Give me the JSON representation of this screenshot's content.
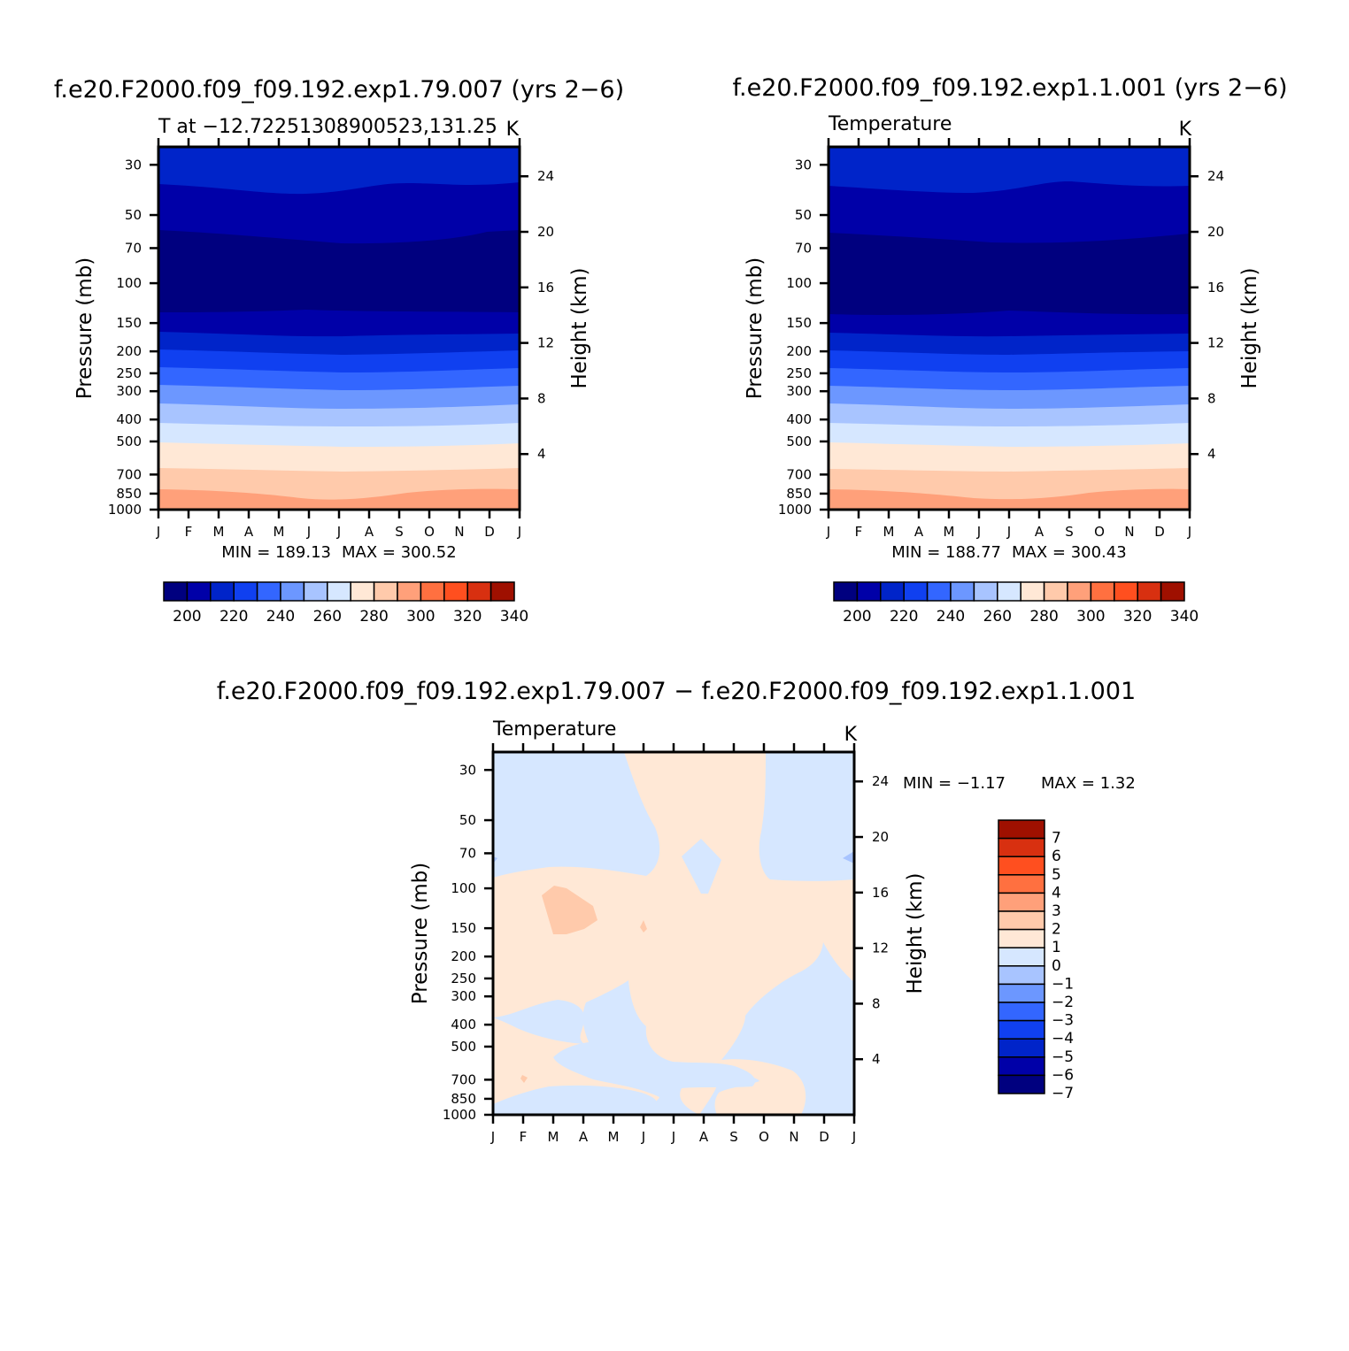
{
  "colors": {
    "scale": [
      "#00007f",
      "#0000a8",
      "#0024c9",
      "#1040f0",
      "#3366ff",
      "#6c97ff",
      "#a8c4ff",
      "#d6e7ff",
      "#ffe8d6",
      "#ffcaab",
      "#ffa07a",
      "#ff7040",
      "#ff4f1f",
      "#d83010",
      "#9f1000"
    ]
  },
  "chart_data": [
    {
      "type": "contour",
      "title": "f.e20.F2000.f09_f09.192.exp1.79.007 (yrs 2−6)",
      "subtitle_left": "T at −12.72251308900523,131.25",
      "subtitle_right": "K",
      "xlabel": "",
      "ylabel": "Pressure (mb)",
      "ylabel_right": "Height (km)",
      "x_ticks": [
        "J",
        "F",
        "M",
        "A",
        "M",
        "J",
        "J",
        "A",
        "S",
        "O",
        "N",
        "D",
        "J"
      ],
      "y_ticks": [
        "30",
        "50",
        "70",
        "100",
        "150",
        "200",
        "250",
        "300",
        "400",
        "500",
        "700",
        "850",
        "1000"
      ],
      "y_ticks_right": [
        "24",
        "20",
        "16",
        "12",
        "8",
        "4"
      ],
      "ylim": [
        1000,
        25
      ],
      "min_label": "MIN = 189.13",
      "max_label": "MAX = 300.52",
      "min": 189.13,
      "max": 300.52,
      "colorbar_labels": [
        "200",
        "220",
        "240",
        "260",
        "280",
        "300",
        "320",
        "340"
      ]
    },
    {
      "type": "contour",
      "title": "f.e20.F2000.f09_f09.192.exp1.1.001 (yrs 2−6)",
      "subtitle_left": "Temperature",
      "subtitle_right": "K",
      "xlabel": "",
      "ylabel": "Pressure (mb)",
      "ylabel_right": "Height (km)",
      "x_ticks": [
        "J",
        "F",
        "M",
        "A",
        "M",
        "J",
        "J",
        "A",
        "S",
        "O",
        "N",
        "D",
        "J"
      ],
      "y_ticks": [
        "30",
        "50",
        "70",
        "100",
        "150",
        "200",
        "250",
        "300",
        "400",
        "500",
        "700",
        "850",
        "1000"
      ],
      "y_ticks_right": [
        "24",
        "20",
        "16",
        "12",
        "8",
        "4"
      ],
      "ylim": [
        1000,
        25
      ],
      "min_label": "MIN = 188.77",
      "max_label": "MAX = 300.43",
      "min": 188.77,
      "max": 300.43,
      "colorbar_labels": [
        "200",
        "220",
        "240",
        "260",
        "280",
        "300",
        "320",
        "340"
      ]
    },
    {
      "type": "contour",
      "title": "f.e20.F2000.f09_f09.192.exp1.79.007 − f.e20.F2000.f09_f09.192.exp1.1.001",
      "subtitle_left": "Temperature",
      "subtitle_right": "K",
      "xlabel": "",
      "ylabel": "Pressure (mb)",
      "ylabel_right": "Height (km)",
      "x_ticks": [
        "J",
        "F",
        "M",
        "A",
        "M",
        "J",
        "J",
        "A",
        "S",
        "O",
        "N",
        "D",
        "J"
      ],
      "y_ticks": [
        "30",
        "50",
        "70",
        "100",
        "150",
        "200",
        "250",
        "300",
        "400",
        "500",
        "700",
        "850",
        "1000"
      ],
      "y_ticks_right": [
        "24",
        "20",
        "16",
        "12",
        "8",
        "4"
      ],
      "ylim": [
        1000,
        25
      ],
      "min_label": "MIN = −1.17",
      "max_label": "MAX = 1.32",
      "min": -1.17,
      "max": 1.32,
      "colorbar_labels": [
        "7",
        "6",
        "5",
        "4",
        "3",
        "2",
        "1",
        "0",
        "−1",
        "−2",
        "−3",
        "−4",
        "−5",
        "−6",
        "−7"
      ]
    }
  ]
}
